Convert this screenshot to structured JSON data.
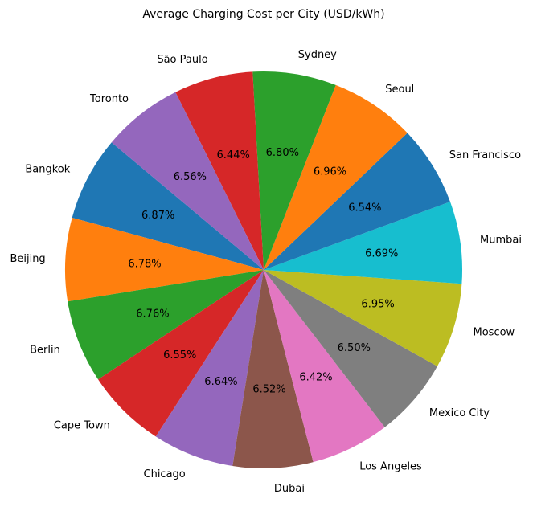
{
  "chart_data": {
    "type": "pie",
    "title": "Average Charging Cost per City (USD/kWh)",
    "categories": [
      "Bangkok",
      "Beijing",
      "Berlin",
      "Cape Town",
      "Chicago",
      "Dubai",
      "Los Angeles",
      "Mexico City",
      "Moscow",
      "Mumbai",
      "San Francisco",
      "Seoul",
      "Sydney",
      "São Paulo",
      "Toronto"
    ],
    "values": [
      6.87,
      6.78,
      6.76,
      6.55,
      6.64,
      6.52,
      6.42,
      6.5,
      6.95,
      6.69,
      6.54,
      6.96,
      6.8,
      6.44,
      6.56
    ],
    "labels": [
      "6.87%",
      "6.78%",
      "6.76%",
      "6.55%",
      "6.64%",
      "6.52%",
      "6.42%",
      "6.50%",
      "6.95%",
      "6.69%",
      "6.54%",
      "6.96%",
      "6.80%",
      "6.44%",
      "6.56%"
    ],
    "colors": [
      "#1f77b4",
      "#ff7f0e",
      "#2ca02c",
      "#d62728",
      "#9467bd",
      "#8c564b",
      "#e377c2",
      "#7f7f7f",
      "#bcbd22",
      "#17becf",
      "#1f77b4",
      "#ff7f0e",
      "#2ca02c",
      "#d62728",
      "#9467bd"
    ],
    "start_angle_deg": 140,
    "direction": "counterclockwise",
    "legend": "none"
  }
}
